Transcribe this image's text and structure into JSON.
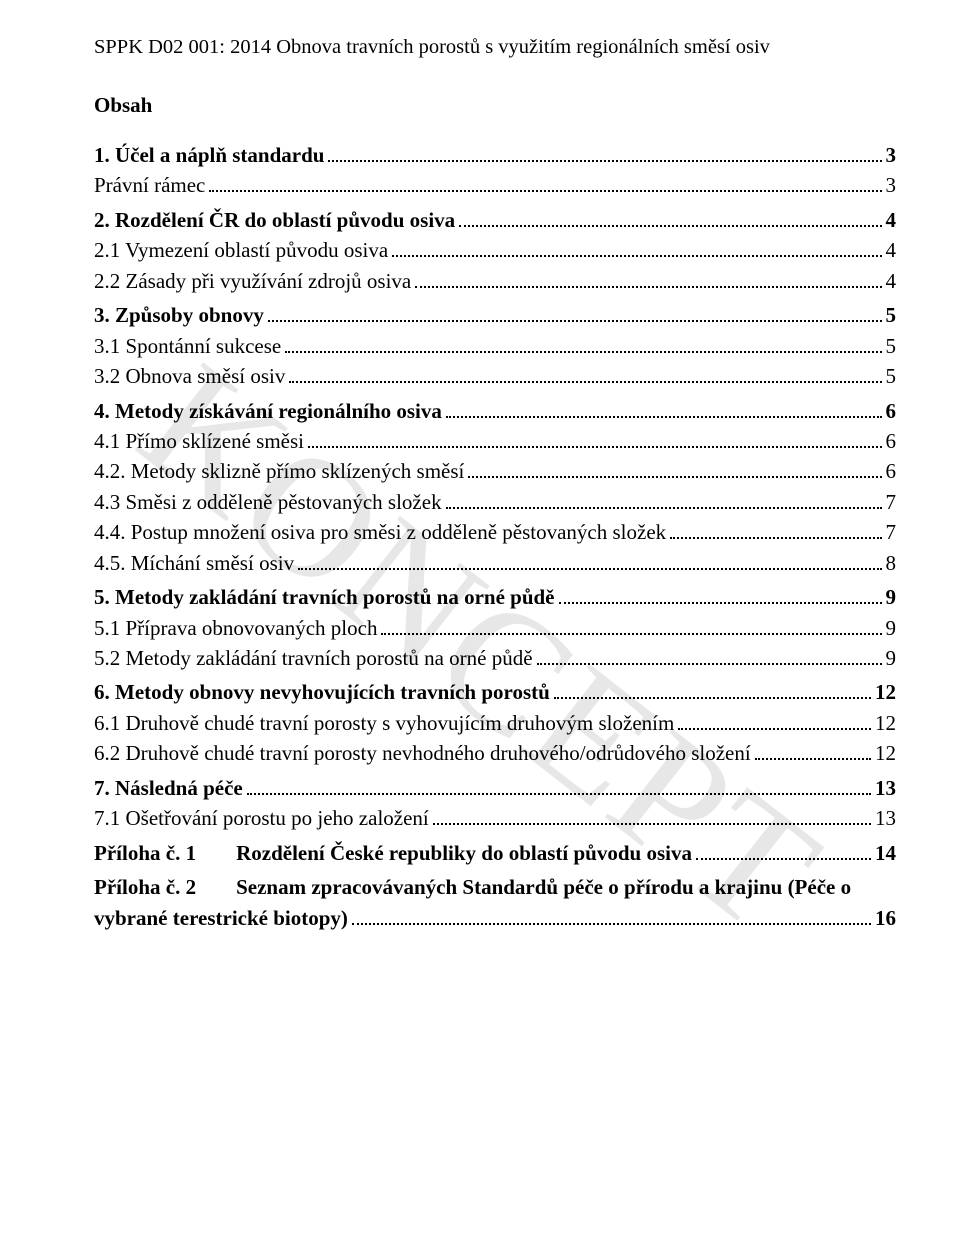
{
  "header": "SPPK D02 001: 2014 Obnova travních porostů s využitím regionálních směsí osiv",
  "tocTitle": "Obsah",
  "watermark": "KONCEPT",
  "toc": [
    {
      "level": 1,
      "label": "1. Účel a náplň standardu",
      "page": "3"
    },
    {
      "level": 2,
      "label": "Právní rámec",
      "page": "3"
    },
    {
      "level": 1,
      "label": "2. Rozdělení ČR do oblastí původu osiva",
      "page": "4"
    },
    {
      "level": 2,
      "label": "2.1 Vymezení oblastí původu osiva",
      "page": "4"
    },
    {
      "level": 2,
      "label": "2.2 Zásady při využívání zdrojů osiva",
      "page": "4"
    },
    {
      "level": 1,
      "label": "3. Způsoby obnovy",
      "page": "5"
    },
    {
      "level": 2,
      "label": "3.1 Spontánní sukcese",
      "page": "5"
    },
    {
      "level": 2,
      "label": "3.2 Obnova směsí osiv",
      "page": "5"
    },
    {
      "level": 1,
      "label": "4. Metody získávání regionálního osiva",
      "page": "6"
    },
    {
      "level": 2,
      "label": "4.1 Přímo sklízené směsi",
      "page": "6"
    },
    {
      "level": 2,
      "label": "4.2. Metody sklizně přímo sklízených směsí",
      "page": "6"
    },
    {
      "level": 2,
      "label": "4.3 Směsi z odděleně pěstovaných složek",
      "page": "7"
    },
    {
      "level": 2,
      "label": "4.4. Postup množení osiva pro směsi z odděleně pěstovaných složek",
      "page": "7"
    },
    {
      "level": 2,
      "label": "4.5. Míchání směsí osiv",
      "page": "8"
    },
    {
      "level": 1,
      "label": "5. Metody zakládání travních porostů na orné půdě",
      "page": "9"
    },
    {
      "level": 2,
      "label": "5.1 Příprava obnovovaných ploch",
      "page": "9"
    },
    {
      "level": 2,
      "label": "5.2 Metody zakládání travních porostů na orné půdě",
      "page": "9"
    },
    {
      "level": 1,
      "label": "6. Metody obnovy nevyhovujících travních porostů",
      "page": "12"
    },
    {
      "level": 2,
      "label": "6.1 Druhově chudé travní porosty s vyhovujícím druhovým složením",
      "page": "12"
    },
    {
      "level": 2,
      "label": "6.2 Druhově chudé travní porosty nevhodného druhového/odrůdového složení",
      "page": "12"
    },
    {
      "level": 1,
      "label": "7. Následná péče",
      "page": "13"
    },
    {
      "level": 2,
      "label": "7.1 Ošetřování porostu po jeho založení",
      "page": "13"
    }
  ],
  "appendix1": {
    "prefix": "Příloha č. 1",
    "title": "Rozdělení České republiky do oblastí původu osiva",
    "page": "14"
  },
  "appendix2": {
    "prefix": "Příloha č. 2",
    "line1": "Seznam  zpracovávaných  Standardů  péče  o  přírodu  a  krajinu  (Péče  o",
    "line2": "vybrané terestrické biotopy)",
    "page": "16"
  }
}
